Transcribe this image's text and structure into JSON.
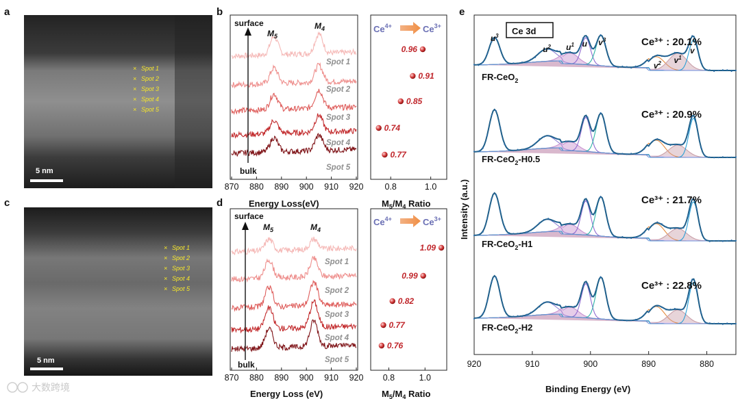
{
  "panels": {
    "a": {
      "label": "a",
      "scale_bar": "5 nm",
      "spots": [
        "Spot 1",
        "Spot 2",
        "Spot 3",
        "Spot 4",
        "Spot 5"
      ]
    },
    "c": {
      "label": "c",
      "scale_bar": "5 nm",
      "spots": [
        "Spot 1",
        "Spot 2",
        "Spot 3",
        "Spot 4",
        "Spot 5"
      ]
    },
    "b": {
      "label": "b",
      "top": "surface",
      "bottom": "bulk",
      "peak1": "M",
      "peak1_sub": "5",
      "peak2": "M",
      "peak2_sub": "4",
      "spot_labels": [
        "Spot 1",
        "Spot 2",
        "Spot 3",
        "Spot 4",
        "Spot 5"
      ]
    },
    "d": {
      "label": "d",
      "top": "surface",
      "bottom": "bulk",
      "peak1": "M",
      "peak1_sub": "5",
      "peak2": "M",
      "peak2_sub": "4",
      "spot_labels": [
        "Spot 1",
        "Spot 2",
        "Spot 3",
        "Spot 4",
        "Spot 5"
      ]
    },
    "e": {
      "label": "e"
    }
  },
  "ratio_header": {
    "from": "Ce",
    "from_sup": "4+",
    "to": "Ce",
    "to_sup": "3+"
  },
  "watermark": "大数跨境",
  "colors": {
    "accent": "#c0262b",
    "ce4": "#6a6fb4",
    "ce3": "#e9a26a"
  },
  "chart_data": [
    {
      "id": "b_eels",
      "type": "line",
      "title": "",
      "xlabel": "Energy Loss(eV)",
      "ylabel": "",
      "xlim": [
        870,
        920
      ],
      "xticks": [
        870,
        880,
        890,
        900,
        910,
        920
      ],
      "series": [
        {
          "name": "Spot 1",
          "color": "#f5b8b6",
          "peaks": [
            {
              "x": 887,
              "h": 0.7
            },
            {
              "x": 905,
              "h": 0.75
            }
          ]
        },
        {
          "name": "Spot 2",
          "color": "#ee8e8c",
          "peaks": [
            {
              "x": 887,
              "h": 0.6
            },
            {
              "x": 905,
              "h": 0.65
            }
          ]
        },
        {
          "name": "Spot 3",
          "color": "#de5c5a",
          "peaks": [
            {
              "x": 887,
              "h": 0.6
            },
            {
              "x": 905,
              "h": 0.7
            }
          ]
        },
        {
          "name": "Spot 4",
          "color": "#c22a2c",
          "peaks": [
            {
              "x": 887,
              "h": 0.5
            },
            {
              "x": 905,
              "h": 0.65
            }
          ]
        },
        {
          "name": "Spot 5",
          "color": "#7e1216",
          "peaks": [
            {
              "x": 887,
              "h": 0.55
            },
            {
              "x": 905,
              "h": 0.6
            }
          ]
        }
      ]
    },
    {
      "id": "b_ratio",
      "type": "scatter",
      "xlabel": "M5/M4 Ratio",
      "xlabel_main": "M",
      "xlabel_sub1": "5",
      "xlabel_mid": "/M",
      "xlabel_sub2": "4",
      "xlabel_tail": " Ratio",
      "xlim": [
        0.7,
        1.08
      ],
      "xticks": [
        0.8,
        1.0
      ],
      "xtick_labels": [
        "0.8",
        "1.0"
      ],
      "points": [
        {
          "spot": "Spot 1",
          "value": 0.96,
          "label": "0.96"
        },
        {
          "spot": "Spot 2",
          "value": 0.91,
          "label": "0.91"
        },
        {
          "spot": "Spot 3",
          "value": 0.85,
          "label": "0.85"
        },
        {
          "spot": "Spot 4",
          "value": 0.74,
          "label": "0.74"
        },
        {
          "spot": "Spot 5",
          "value": 0.77,
          "label": "0.77"
        }
      ]
    },
    {
      "id": "d_eels",
      "type": "line",
      "xlabel": "Energy Loss (eV)",
      "xlim": [
        870,
        920
      ],
      "xticks": [
        870,
        880,
        890,
        900,
        910,
        920
      ],
      "series": [
        {
          "name": "Spot 1",
          "color": "#f5b8b6",
          "peaks": [
            {
              "x": 885,
              "h": 0.45
            },
            {
              "x": 903,
              "h": 0.4
            }
          ]
        },
        {
          "name": "Spot 2",
          "color": "#ee8e8c",
          "peaks": [
            {
              "x": 885,
              "h": 0.7
            },
            {
              "x": 903,
              "h": 0.7
            }
          ]
        },
        {
          "name": "Spot 3",
          "color": "#de5c5a",
          "peaks": [
            {
              "x": 885,
              "h": 0.75
            },
            {
              "x": 903,
              "h": 0.9
            }
          ]
        },
        {
          "name": "Spot 4",
          "color": "#c22a2c",
          "peaks": [
            {
              "x": 885,
              "h": 0.8
            },
            {
              "x": 903,
              "h": 1.0
            }
          ]
        },
        {
          "name": "Spot 5",
          "color": "#7e1216",
          "peaks": [
            {
              "x": 885,
              "h": 0.75
            },
            {
              "x": 903,
              "h": 1.0
            }
          ]
        }
      ]
    },
    {
      "id": "d_ratio",
      "type": "scatter",
      "xlabel": "M5/M4 Ratio",
      "xlabel_main": "M",
      "xlabel_sub1": "5",
      "xlabel_mid": "/M",
      "xlabel_sub2": "4",
      "xlabel_tail": " Ratio",
      "xlim": [
        0.7,
        1.12
      ],
      "xticks": [
        0.8,
        1.0
      ],
      "xtick_labels": [
        "0.8",
        "1.0"
      ],
      "points": [
        {
          "spot": "Spot 1",
          "value": 1.09,
          "label": "1.09"
        },
        {
          "spot": "Spot 2",
          "value": 0.99,
          "label": "0.99"
        },
        {
          "spot": "Spot 3",
          "value": 0.82,
          "label": "0.82"
        },
        {
          "spot": "Spot 4",
          "value": 0.77,
          "label": "0.77"
        },
        {
          "spot": "Spot 5",
          "value": 0.76,
          "label": "0.76"
        }
      ]
    },
    {
      "id": "e_xps",
      "type": "line",
      "title": "Ce 3d",
      "xlabel": "Binding Energy (eV)",
      "ylabel": "Intensity (a.u.)",
      "xlim": [
        920,
        875
      ],
      "xticks": [
        920,
        910,
        900,
        890,
        880
      ],
      "peak_labels": [
        {
          "main": "u",
          "sup": "3",
          "x": 916.5
        },
        {
          "main": "u",
          "sup": "2",
          "x": 907.5
        },
        {
          "main": "u",
          "sup": "1",
          "x": 903.5
        },
        {
          "main": "u",
          "sup": "",
          "x": 901
        },
        {
          "main": "v",
          "sup": "3",
          "x": 898
        },
        {
          "main": "v",
          "sup": "2",
          "x": 888.5
        },
        {
          "main": "v",
          "sup": "1",
          "x": 885
        },
        {
          "main": "v",
          "sup": "",
          "x": 882.5
        }
      ],
      "samples": [
        {
          "name": "FR-CeO",
          "sub": "2",
          "suffix": "",
          "ce3": "Ce³⁺ : 20.1%",
          "ce3_value": 20.1,
          "amps": {
            "u3": 0.55,
            "u2": 0.25,
            "u1": 0.22,
            "u": 0.55,
            "v3": 0.62,
            "v2": 0.28,
            "v1": 0.35,
            "v": 0.62
          }
        },
        {
          "name": "FR-CeO",
          "sub": "2",
          "suffix": "-H0.5",
          "ce3": "Ce³⁺ : 20.9%",
          "ce3_value": 20.9,
          "amps": {
            "u3": 0.85,
            "u2": 0.25,
            "u1": 0.18,
            "u": 0.7,
            "v3": 0.8,
            "v2": 0.35,
            "v1": 0.25,
            "v": 0.8
          }
        },
        {
          "name": "FR-CeO",
          "sub": "2",
          "suffix": "-H1",
          "ce3": "Ce³⁺ : 21.7%",
          "ce3_value": 21.7,
          "amps": {
            "u3": 0.85,
            "u2": 0.25,
            "u1": 0.2,
            "u": 0.7,
            "v3": 0.8,
            "v2": 0.35,
            "v1": 0.25,
            "v": 0.8
          }
        },
        {
          "name": "FR-CeO",
          "sub": "2",
          "suffix": "-H2",
          "ce3": "Ce³⁺ : 22.8%",
          "ce3_value": 22.8,
          "amps": {
            "u3": 0.85,
            "u2": 0.25,
            "u1": 0.2,
            "u": 0.7,
            "v3": 0.85,
            "v2": 0.35,
            "v1": 0.28,
            "v": 0.85
          }
        }
      ]
    }
  ]
}
